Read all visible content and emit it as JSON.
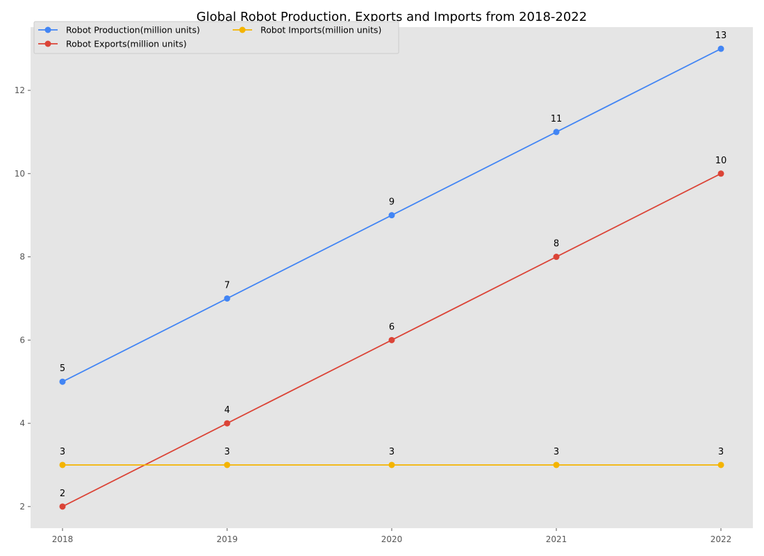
{
  "chart_data": {
    "type": "line",
    "title": "Global Robot Production, Exports and Imports from 2018-2022",
    "xlabel": "",
    "ylabel": "",
    "categories": [
      "2018",
      "2019",
      "2020",
      "2021",
      "2022"
    ],
    "series": [
      {
        "name": "Robot Production(million units)",
        "color": "#4285f4",
        "values": [
          5,
          7,
          9,
          11,
          13
        ]
      },
      {
        "name": "Robot Exports(million units)",
        "color": "#db4437",
        "values": [
          2,
          4,
          6,
          8,
          10
        ]
      },
      {
        "name": "Robot Imports(million units)",
        "color": "#f4b400",
        "values": [
          3,
          3,
          3,
          3,
          3
        ]
      }
    ],
    "ylim": [
      1.48,
      13.52
    ],
    "yticks": [
      2,
      4,
      6,
      8,
      10,
      12
    ],
    "grid": false,
    "legend": "top-left",
    "plot_background": "#e5e5e5",
    "show_data_labels": true
  }
}
